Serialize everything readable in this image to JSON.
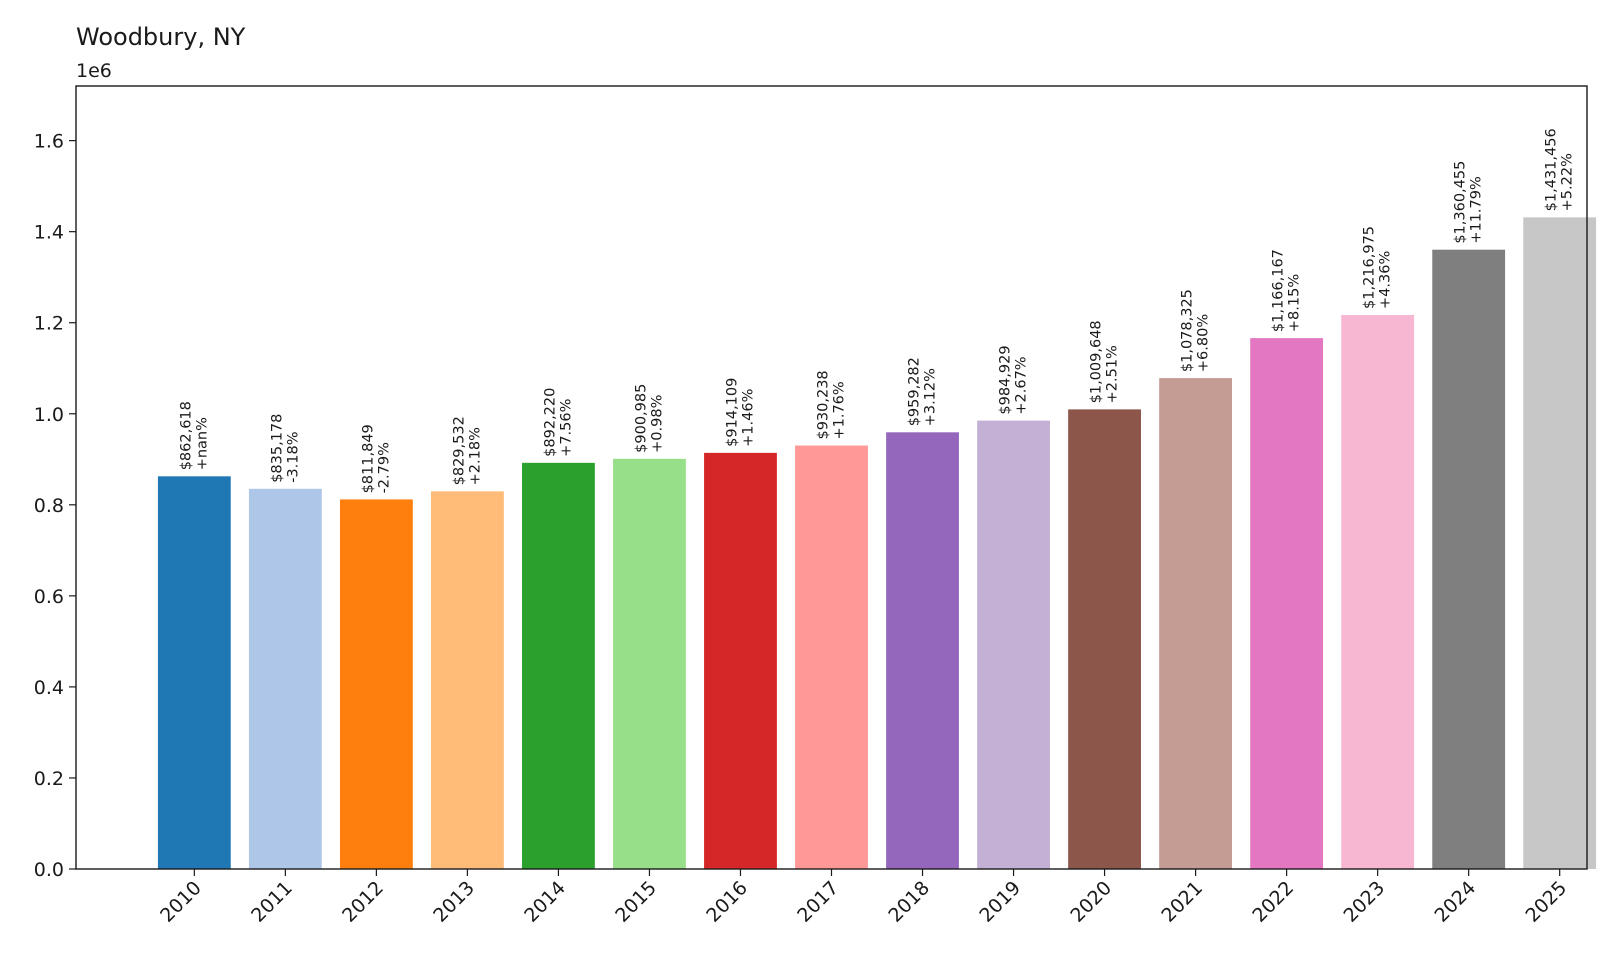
{
  "chart_data": {
    "type": "bar",
    "title": "Woodbury, NY",
    "axis_offset_label": "1e6",
    "xlabel": "",
    "ylabel": "",
    "ylim": [
      0,
      1.72
    ],
    "y_ticks": [
      0.0,
      0.2,
      0.4,
      0.6,
      0.8,
      1.0,
      1.2,
      1.4,
      1.6
    ],
    "y_tick_labels": [
      "0.0",
      "0.2",
      "0.4",
      "0.6",
      "0.8",
      "1.0",
      "1.2",
      "1.4",
      "1.6"
    ],
    "grid": false,
    "categories": [
      "2010",
      "2011",
      "2012",
      "2013",
      "2014",
      "2015",
      "2016",
      "2017",
      "2018",
      "2019",
      "2020",
      "2021",
      "2022",
      "2023",
      "2024",
      "2025"
    ],
    "values": [
      862618,
      835178,
      811849,
      829532,
      892220,
      900985,
      914109,
      930238,
      959282,
      984929,
      1009648,
      1078325,
      1166167,
      1216975,
      1360455,
      1431456
    ],
    "value_labels": [
      "$862,618",
      "$835,178",
      "$811,849",
      "$829,532",
      "$892,220",
      "$900,985",
      "$914,109",
      "$930,238",
      "$959,282",
      "$984,929",
      "$1,009,648",
      "$1,078,325",
      "$1,166,167",
      "$1,216,975",
      "$1,360,455",
      "$1,431,456"
    ],
    "change_labels": [
      "+nan%",
      "-3.18%",
      "-2.79%",
      "+2.18%",
      "+7.56%",
      "+0.98%",
      "+1.46%",
      "+1.76%",
      "+3.12%",
      "+2.67%",
      "+2.51%",
      "+6.80%",
      "+8.15%",
      "+4.36%",
      "+11.79%",
      "+5.22%"
    ],
    "colors": [
      "#1f77b4",
      "#aec7e8",
      "#ff7f0e",
      "#ffbb78",
      "#2ca02c",
      "#98df8a",
      "#d62728",
      "#ff9896",
      "#9467bd",
      "#c5b0d5",
      "#8c564b",
      "#c49c94",
      "#e377c2",
      "#f7b6d2",
      "#7f7f7f",
      "#c7c7c7"
    ]
  }
}
